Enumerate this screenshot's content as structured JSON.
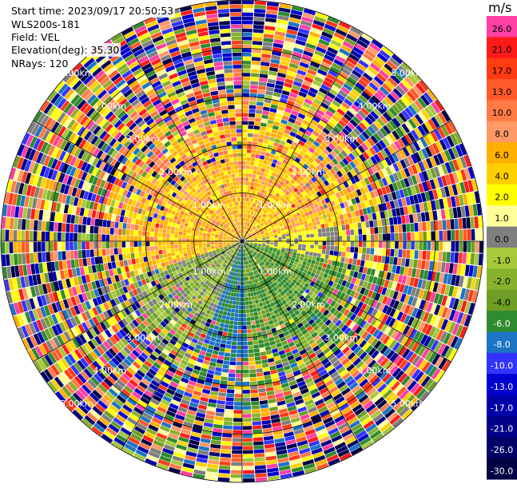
{
  "info": {
    "start_time": "Start time: 2023/09/17 20:50:53",
    "instrument": "WLS200s-181",
    "field": "Field: VEL",
    "elevation": "Elevation(deg): 35.30",
    "nrays": "NRays: 120"
  },
  "chart_data": {
    "type": "heatmap",
    "subtype": "ppi-polar",
    "field": "VEL",
    "units": "m/s",
    "elevation_deg": 35.3,
    "nrays": 120,
    "range_rings_km": [
      1.0,
      2.0,
      3.0,
      4.0,
      5.0
    ],
    "range_labels": [
      "1.00km",
      "2.00km",
      "3.00km",
      "4.00km",
      "5.00km"
    ],
    "radial_spokes_deg": [
      0,
      30,
      60,
      90,
      120,
      150,
      180,
      210,
      240,
      270,
      300,
      330
    ],
    "max_range_km": 5.0,
    "colorbar": {
      "unit_label": "m/s",
      "ticks": [
        "26.0",
        "21.0",
        "17.0",
        "13.0",
        "10.0",
        "8.0",
        "6.0",
        "4.0",
        "2.0",
        "1.0",
        "0.0",
        "-1.0",
        "-2.0",
        "-4.0",
        "-6.0",
        "-8.0",
        "-10.0",
        "-13.0",
        "-17.0",
        "-21.0",
        "-26.0",
        "-30.0"
      ],
      "colors": [
        "#ff3fa3",
        "#ff1a1a",
        "#ff3b14",
        "#ff5a28",
        "#ff7a45",
        "#ff9966",
        "#ffb000",
        "#ffd000",
        "#ffff00",
        "#ffff99",
        "#7f7f7f",
        "#a5c93a",
        "#88b22e",
        "#6e9e25",
        "#2e8b2e",
        "#1b74c4",
        "#3333ff",
        "#0000d0",
        "#0000aa",
        "#000088",
        "#000066",
        "#000044"
      ]
    },
    "sector_pattern": [
      {
        "from_deg": 0,
        "to_deg": 90,
        "near_field_value": 8.0,
        "description_value": "positive"
      },
      {
        "from_deg": 90,
        "to_deg": 180,
        "near_field_value": -6.0
      },
      {
        "from_deg": 180,
        "to_deg": 270,
        "near_field_value": -2.0
      },
      {
        "from_deg": 270,
        "to_deg": 360,
        "near_field_value": 6.0
      }
    ]
  }
}
